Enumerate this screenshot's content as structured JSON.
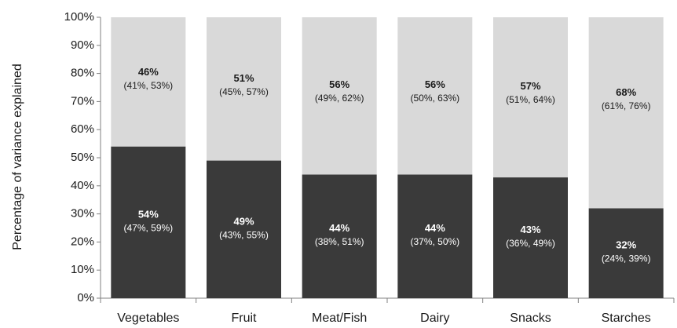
{
  "chart_data": {
    "type": "bar",
    "stacked": true,
    "title": "",
    "xlabel": "",
    "ylabel": "Percentage of variance explained",
    "ylim": [
      0,
      100
    ],
    "y_ticks": [
      "0%",
      "10%",
      "20%",
      "30%",
      "40%",
      "50%",
      "60%",
      "70%",
      "80%",
      "90%",
      "100%"
    ],
    "grid": false,
    "legend": "none",
    "categories": [
      "Vegetables",
      "Fruit",
      "Meat/Fish",
      "Dairy",
      "Snacks",
      "Starches"
    ],
    "series": [
      {
        "color": "#3a3a3a",
        "label_color": "#ffffff",
        "values": [
          54,
          49,
          44,
          44,
          43,
          32
        ],
        "labels": [
          "54%",
          "49%",
          "44%",
          "44%",
          "43%",
          "32%"
        ],
        "ci_labels": [
          "(47%, 59%)",
          "(43%, 55%)",
          "(38%, 51%)",
          "(37%, 50%)",
          "(36%, 49%)",
          "(24%, 39%)"
        ]
      },
      {
        "color": "#d9d9d9",
        "label_color": "#1a1a1a",
        "values": [
          46,
          51,
          56,
          56,
          57,
          68
        ],
        "labels": [
          "46%",
          "51%",
          "56%",
          "56%",
          "57%",
          "68%"
        ],
        "ci_labels": [
          "(41%, 53%)",
          "(45%, 57%)",
          "(49%, 62%)",
          "(50%, 63%)",
          "(51%, 64%)",
          "(61%, 76%)"
        ]
      }
    ]
  }
}
